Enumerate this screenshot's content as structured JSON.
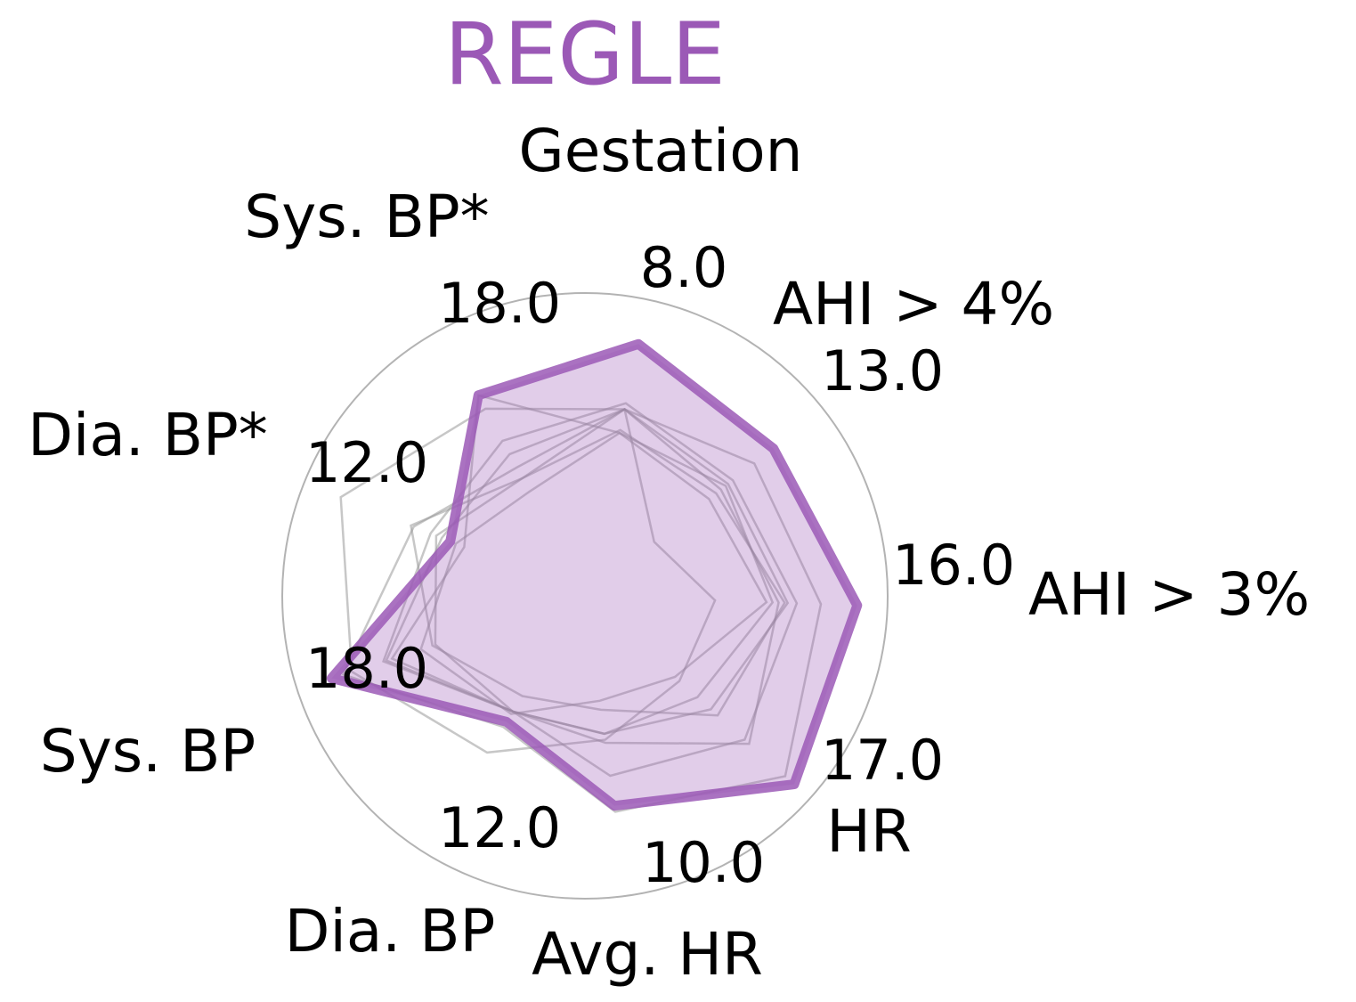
{
  "chart_data": {
    "type": "radar",
    "title": "REGLE",
    "axes": [
      {
        "label": "Gestation",
        "max_label": "8.0"
      },
      {
        "label": "AHI > 4%",
        "max_label": "13.0"
      },
      {
        "label": "AHI > 3%",
        "max_label": "16.0"
      },
      {
        "label": "HR",
        "max_label": "17.0"
      },
      {
        "label": "Avg. HR",
        "max_label": "10.0"
      },
      {
        "label": "Dia. BP",
        "max_label": "12.0"
      },
      {
        "label": "Sys. BP",
        "max_label": "18.0"
      },
      {
        "label": "Dia. BP*",
        "max_label": "12.0"
      },
      {
        "label": "Sys. BP*",
        "max_label": "18.0"
      }
    ],
    "range": [
      0,
      1
    ],
    "series": [
      {
        "highlight": true,
        "color": "#9b59b6",
        "values": [
          0.85,
          0.79,
          0.9,
          0.93,
          0.7,
          0.49,
          0.88,
          0.48,
          0.75
        ]
      },
      {
        "color": "#999999",
        "values": [
          0.63,
          0.71,
          0.78,
          0.89,
          0.72,
          0.51,
          0.84,
          0.61,
          0.48
        ]
      },
      {
        "color": "#999999",
        "values": [
          0.65,
          0.62,
          0.7,
          0.71,
          0.6,
          0.45,
          0.7,
          0.55,
          0.58
        ]
      },
      {
        "color": "#999999",
        "values": [
          0.63,
          0.57,
          0.64,
          0.73,
          0.49,
          0.45,
          0.52,
          0.53,
          0.44
        ]
      },
      {
        "color": "#999999",
        "values": [
          0.63,
          0.6,
          0.67,
          0.56,
          0.46,
          0.45,
          0.69,
          0.51,
          0.53
        ]
      },
      {
        "color": "#999999",
        "values": [
          0.56,
          0.55,
          0.66,
          0.59,
          0.38,
          0.39,
          0.53,
          0.62,
          0.44
        ]
      },
      {
        "color": "#999999",
        "values": [
          0.55,
          0.59,
          0.62,
          0.5,
          0.46,
          0.45,
          0.67,
          0.43,
          0.75
        ]
      },
      {
        "color": "#999999",
        "values": [
          0.63,
          0.29,
          0.43,
          0.42,
          0.48,
          0.61,
          0.81,
          0.87,
          0.7
        ]
      },
      {
        "color": "#999999",
        "values": [
          0.55,
          0.52,
          0.6,
          0.4,
          0.35,
          0.46,
          0.57,
          0.46,
          0.39
        ]
      }
    ]
  }
}
